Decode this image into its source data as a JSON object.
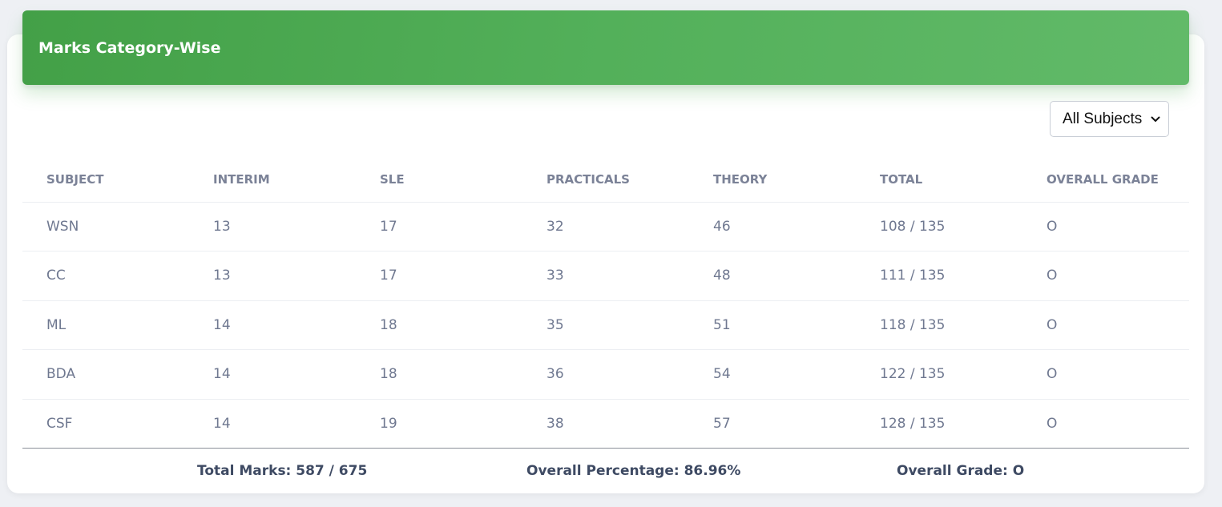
{
  "header": {
    "title": "Marks Category-Wise"
  },
  "filter": {
    "selected": "All Subjects"
  },
  "table": {
    "columns": [
      "SUBJECT",
      "INTERIM",
      "SLE",
      "PRACTICALS",
      "THEORY",
      "TOTAL",
      "OVERALL GRADE"
    ],
    "rows": [
      [
        "WSN",
        "13",
        "17",
        "32",
        "46",
        "108 / 135",
        "O"
      ],
      [
        "CC",
        "13",
        "17",
        "33",
        "48",
        "111 / 135",
        "O"
      ],
      [
        "ML",
        "14",
        "18",
        "35",
        "51",
        "118 / 135",
        "O"
      ],
      [
        "BDA",
        "14",
        "18",
        "36",
        "54",
        "122 / 135",
        "O"
      ],
      [
        "CSF",
        "14",
        "19",
        "38",
        "57",
        "128 / 135",
        "O"
      ]
    ]
  },
  "footer": {
    "total_marks": "Total Marks: 587 / 675",
    "overall_percentage": "Overall Percentage: 86.96%",
    "overall_grade": "Overall Grade: O"
  },
  "colors": {
    "header_green": "#4caf50",
    "text_muted": "#6f7890",
    "footer_text": "#3e4a63"
  },
  "icons": {
    "select_arrow": "chevron-down-icon"
  }
}
